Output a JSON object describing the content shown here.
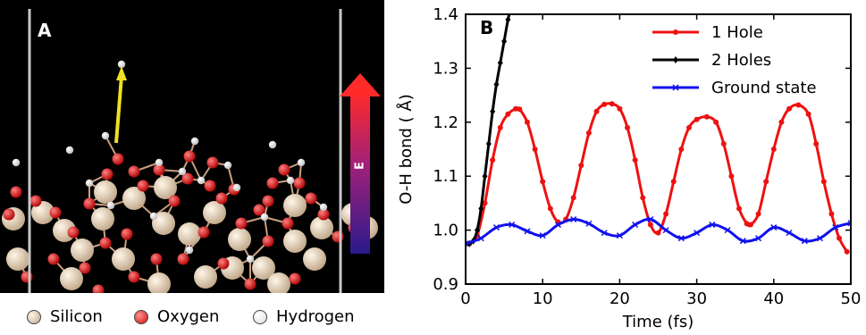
{
  "panelA": {
    "label": "A",
    "efield_label": "E",
    "legend": [
      {
        "name": "Silicon",
        "color": "#e8d2b4"
      },
      {
        "name": "Oxygen",
        "color": "#e02020"
      },
      {
        "name": "Hydrogen",
        "color": "#ffffff"
      }
    ]
  },
  "chart_data": {
    "type": "line",
    "panel_label": "B",
    "xlabel": "Time (fs)",
    "ylabel": "O-H bond ( Å)",
    "xlim": [
      0,
      50
    ],
    "ylim": [
      0.9,
      1.4
    ],
    "xticks": [
      "0",
      "10",
      "20",
      "30",
      "40",
      "50"
    ],
    "yticks": [
      "0.9",
      "1.0",
      "1.1",
      "1.2",
      "1.3",
      "1.4"
    ],
    "legend_position": "top-right",
    "series": [
      {
        "name": "1 Hole",
        "color": "#ee1111",
        "marker": "circle",
        "x": [
          0.5,
          1.5,
          2.5,
          3.5,
          4.5,
          5.5,
          6.5,
          7.0,
          8.0,
          9.0,
          10.0,
          11.0,
          12.0,
          13.0,
          14.0,
          15.0,
          16.0,
          17.0,
          18.0,
          19.0,
          20.0,
          21.0,
          22.0,
          23.0,
          24.0,
          25.0,
          26.0,
          27.0,
          28.0,
          29.0,
          30.0,
          31.3,
          32.5,
          33.5,
          34.5,
          35.5,
          36.5,
          37.0,
          38.0,
          39.0,
          40.0,
          41.0,
          42.0,
          43.2,
          44.5,
          45.5,
          46.5,
          47.5,
          48.5,
          49.5
        ],
        "y": [
          0.975,
          0.99,
          1.05,
          1.13,
          1.19,
          1.215,
          1.225,
          1.224,
          1.2,
          1.15,
          1.09,
          1.04,
          1.015,
          1.02,
          1.06,
          1.12,
          1.18,
          1.22,
          1.233,
          1.234,
          1.225,
          1.19,
          1.13,
          1.06,
          1.01,
          0.995,
          1.03,
          1.09,
          1.15,
          1.19,
          1.205,
          1.21,
          1.2,
          1.16,
          1.1,
          1.04,
          1.012,
          1.01,
          1.03,
          1.09,
          1.15,
          1.2,
          1.225,
          1.232,
          1.215,
          1.16,
          1.09,
          1.03,
          0.985,
          0.96
        ]
      },
      {
        "name": "2 Holes",
        "color": "#000000",
        "marker": "diamond",
        "x": [
          0.5,
          1.0,
          1.5,
          2.0,
          2.5,
          3.0,
          3.5,
          4.0,
          4.5,
          5.0,
          5.5,
          6.0
        ],
        "y": [
          0.975,
          0.98,
          1.0,
          1.04,
          1.1,
          1.16,
          1.22,
          1.27,
          1.31,
          1.35,
          1.39,
          1.42
        ]
      },
      {
        "name": "Ground state",
        "color": "#1111ee",
        "marker": "x",
        "x": [
          0,
          2,
          4,
          6,
          8,
          10,
          12,
          14,
          16,
          18,
          20,
          22,
          24,
          26,
          28,
          30,
          32,
          34,
          36,
          38,
          40,
          42,
          44,
          46,
          48,
          50
        ],
        "y": [
          0.975,
          0.985,
          1.005,
          1.01,
          0.998,
          0.99,
          1.01,
          1.02,
          1.012,
          0.995,
          0.99,
          1.01,
          1.02,
          1.0,
          0.985,
          0.995,
          1.01,
          1.0,
          0.98,
          0.985,
          1.005,
          0.995,
          0.98,
          0.985,
          1.005,
          1.013
        ]
      }
    ]
  }
}
